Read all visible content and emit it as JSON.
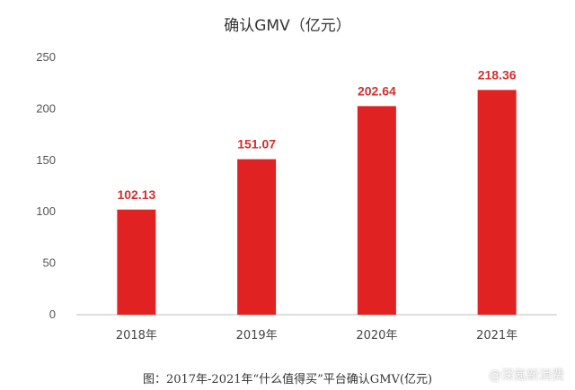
{
  "chart_data": {
    "type": "bar",
    "title": "确认GMV（亿元）",
    "categories": [
      "2018年",
      "2019年",
      "2020年",
      "2021年"
    ],
    "values": [
      102.13,
      151.07,
      202.64,
      218.36
    ],
    "data_labels": [
      "102.13",
      "151.07",
      "202.64",
      "218.36"
    ],
    "yticks": [
      "0",
      "50",
      "100",
      "150",
      "200",
      "250"
    ],
    "ylim": [
      0,
      250
    ],
    "grid": false,
    "bar_color": "#e02222",
    "label_color": "#d32f2f"
  },
  "caption": "图：2017年-2021年“什么值得买”平台确认GMV(亿元)",
  "watermark": "@深氪新消费"
}
